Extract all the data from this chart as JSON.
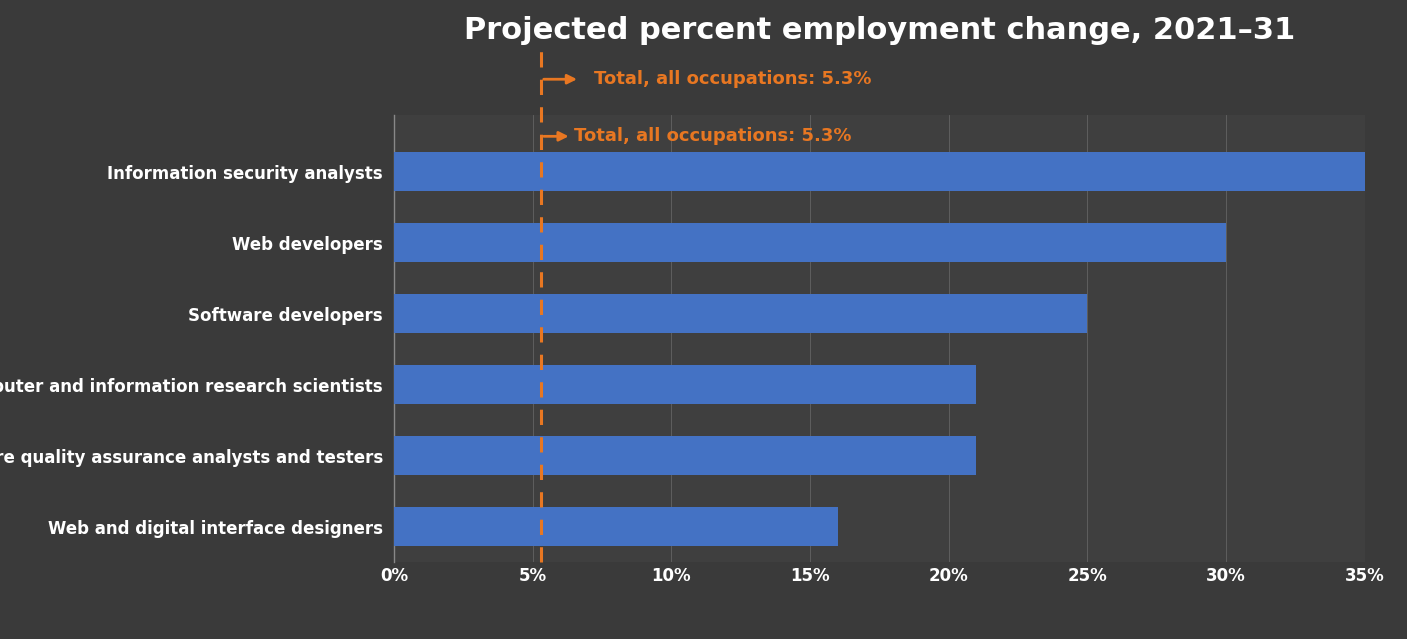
{
  "title": "Projected percent employment change, 2021–31",
  "categories": [
    "Web and digital interface designers",
    "Software quality assurance analysts and testers",
    "Computer and information research scientists",
    "Software developers",
    "Web developers",
    "Information security analysts"
  ],
  "values": [
    16,
    21,
    21,
    25,
    30,
    35
  ],
  "bar_color": "#4472C4",
  "background_color": "#3a3a3a",
  "text_color": "#ffffff",
  "average_line_value": 5.3,
  "average_line_color": "#E87722",
  "average_label": "Total, all occupations: 5.3%",
  "xlim": [
    0,
    35
  ],
  "xticks": [
    0,
    5,
    10,
    15,
    20,
    25,
    30,
    35
  ],
  "xtick_labels": [
    "0%",
    "5%",
    "10%",
    "15%",
    "20%",
    "25%",
    "30%",
    "35%"
  ],
  "title_fontsize": 22,
  "label_fontsize": 12,
  "tick_fontsize": 12,
  "annotation_fontsize": 13,
  "grid_color": "#888888",
  "bar_height": 0.55
}
